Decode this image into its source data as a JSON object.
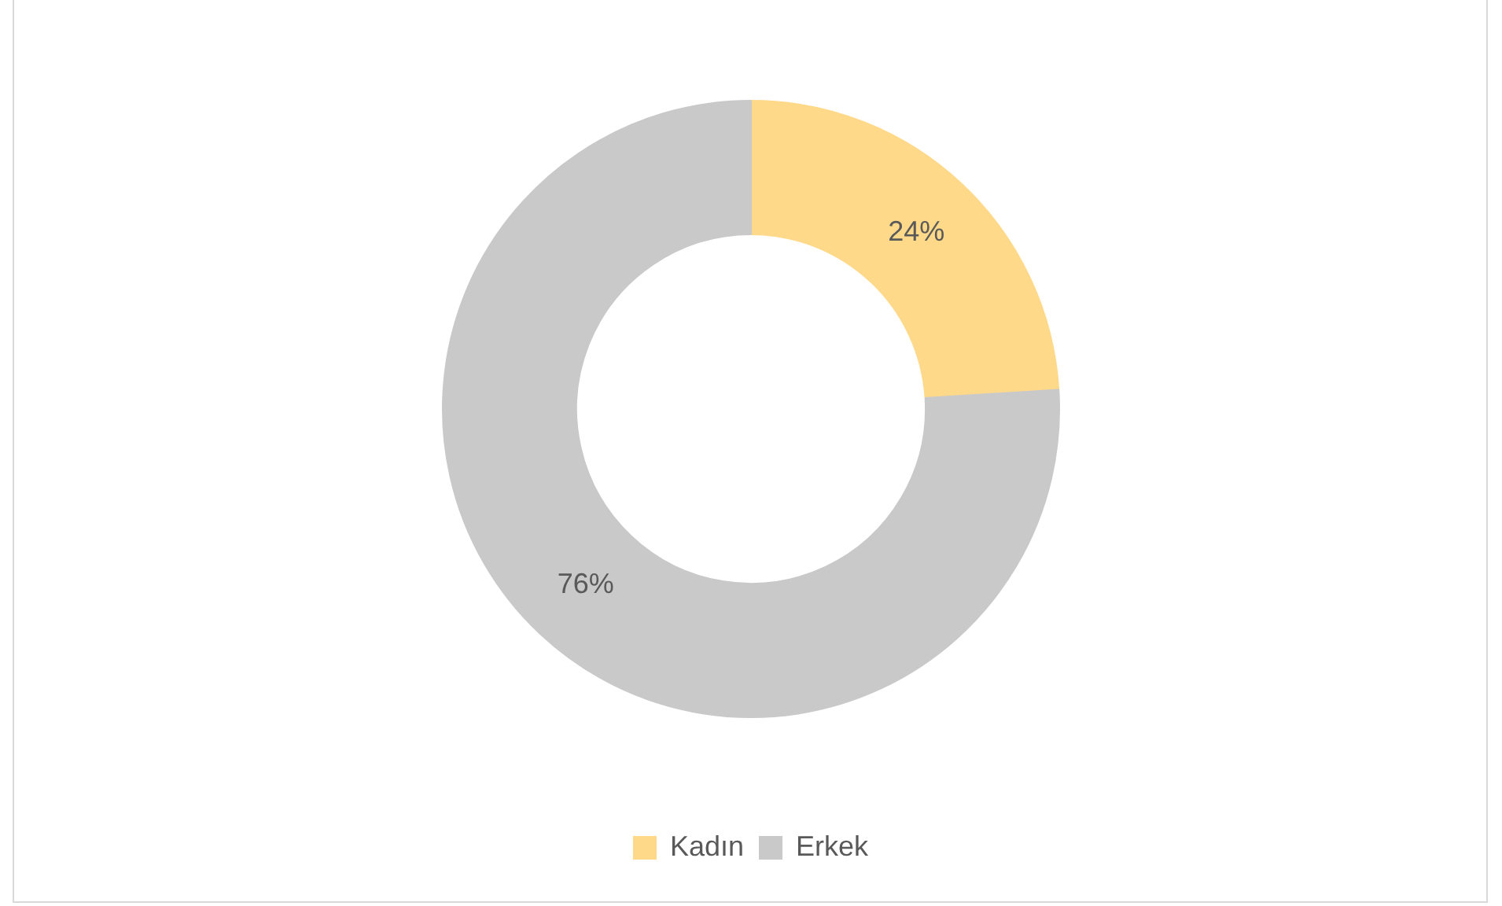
{
  "chart_data": {
    "type": "donut",
    "categories": [
      "Kadın",
      "Erkek"
    ],
    "values": [
      24,
      76
    ],
    "colors": [
      "#ffd98a",
      "#c9c9c9"
    ],
    "value_labels": [
      "24%",
      "76%"
    ],
    "legend": "bottom"
  }
}
